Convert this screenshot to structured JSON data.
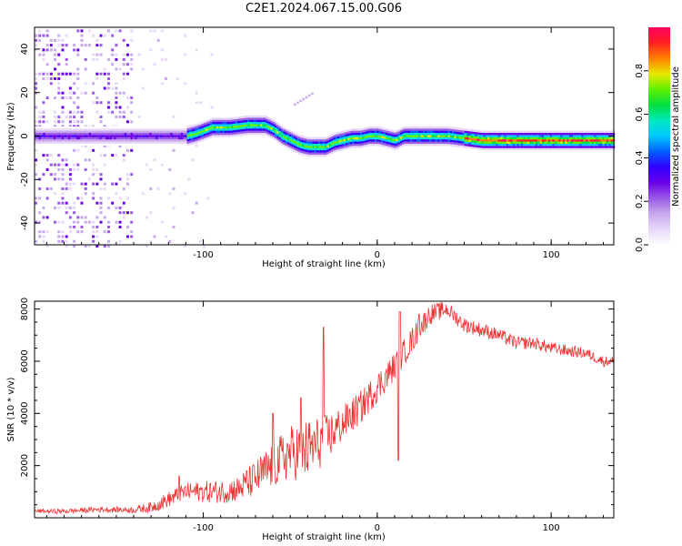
{
  "title": "C2E1.2024.067.15.00.G06",
  "chart_data": [
    {
      "type": "heatmap",
      "xlabel": "Height of straight line (km)",
      "ylabel": "Frequency (Hz)",
      "xlim": [
        -197,
        136
      ],
      "ylim": [
        -50,
        50
      ],
      "x_ticks": [
        -100,
        0,
        100
      ],
      "y_ticks": [
        -40,
        -20,
        0,
        20,
        40
      ],
      "colorbar": {
        "label": "Normalized spectral amplitude",
        "range": [
          0,
          1
        ],
        "ticks": [
          "0.0",
          "0.2",
          "0.4",
          "0.6",
          "0.8"
        ],
        "colormap": [
          "#ffffff",
          "#e8d8f8",
          "#c8a8ee",
          "#9a5ae6",
          "#6a00e8",
          "#3000ff",
          "#0060ff",
          "#00c8ff",
          "#00e8c0",
          "#00e040",
          "#60f000",
          "#e8e800",
          "#ff8000",
          "#ff2020",
          "#ff0060"
        ]
      },
      "ridge": {
        "x": [
          -197,
          -180,
          -160,
          -140,
          -120,
          -110,
          -105,
          -95,
          -85,
          -75,
          -65,
          -60,
          -55,
          -50,
          -45,
          -40,
          -35,
          -30,
          -25,
          -20,
          -15,
          -10,
          -5,
          0,
          5,
          10,
          15,
          20,
          30,
          40,
          50,
          60,
          80,
          100,
          120,
          136
        ],
        "freq": [
          0,
          0,
          0,
          0,
          0,
          0,
          1,
          4,
          4,
          5,
          5,
          3,
          0,
          -2,
          -4,
          -5,
          -5,
          -5,
          -3,
          -2,
          -1,
          -1,
          0,
          0,
          -1,
          -2,
          0,
          0,
          0,
          0,
          -1,
          -2,
          -2,
          -2,
          -2,
          -2
        ]
      },
      "annotation_streak": {
        "x": [
          -48,
          -38
        ],
        "freq": [
          15,
          20
        ]
      }
    },
    {
      "type": "line",
      "xlabel": "Height of straight line (km)",
      "ylabel": "SNR (10 * v/v)",
      "xlim": [
        -197,
        136
      ],
      "ylim": [
        0,
        8300
      ],
      "x_ticks": [
        -100,
        0,
        100
      ],
      "y_ticks": [
        2000,
        4000,
        6000,
        8000
      ],
      "color": "#ee3333",
      "envelope": {
        "x": [
          -197,
          -180,
          -160,
          -140,
          -130,
          -120,
          -110,
          -100,
          -90,
          -80,
          -70,
          -60,
          -50,
          -40,
          -30,
          -20,
          -10,
          0,
          10,
          20,
          30,
          40,
          50,
          60,
          70,
          80,
          90,
          100,
          110,
          120,
          130,
          136
        ],
        "y": [
          250,
          250,
          320,
          300,
          400,
          700,
          1000,
          1000,
          1000,
          1100,
          1500,
          2000,
          2500,
          2600,
          3000,
          3600,
          4200,
          5000,
          5800,
          6800,
          7800,
          8000,
          7400,
          7200,
          7000,
          6700,
          6700,
          6500,
          6400,
          6300,
          6000,
          6000
        ]
      },
      "noise_amplitude": {
        "x": [
          -197,
          -140,
          -120,
          -80,
          -60,
          -40,
          -20,
          0,
          20,
          40,
          80,
          136
        ],
        "amp": [
          80,
          120,
          300,
          500,
          900,
          1200,
          700,
          600,
          500,
          300,
          250,
          200
        ]
      },
      "spikes": [
        {
          "x": -31,
          "y": 7300
        },
        {
          "x": -60,
          "y": 4000
        },
        {
          "x": -44,
          "y": 4600
        },
        {
          "x": 13,
          "y": 7900
        },
        {
          "x": 12,
          "y": 2200
        },
        {
          "x": 24,
          "y": 7800
        },
        {
          "x": -114,
          "y": 1600
        },
        {
          "x": -75,
          "y": 1800
        }
      ]
    }
  ]
}
